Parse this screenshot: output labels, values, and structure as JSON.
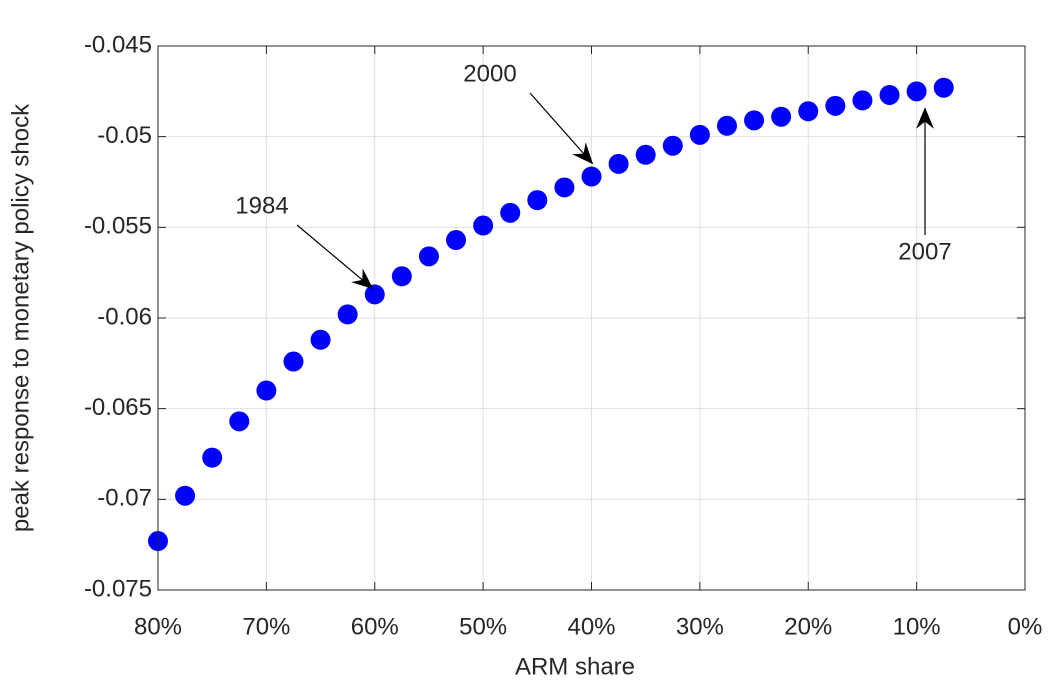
{
  "chart_data": {
    "type": "scatter",
    "xlabel": "ARM share",
    "ylabel": "peak response to monetary policy shock",
    "annotations": [
      "1984",
      "2000",
      "2007"
    ],
    "x": [
      80,
      77.5,
      75,
      72.5,
      70,
      67.5,
      65,
      62.5,
      60,
      57.5,
      55,
      52.5,
      50,
      47.5,
      45,
      42.5,
      40,
      37.5,
      35,
      32.5,
      30,
      27.5,
      25,
      22.5,
      20,
      17.5,
      15,
      12.5,
      10,
      7.5
    ],
    "series": [
      {
        "color": "#0000ff",
        "values": [
          -0.0723,
          -0.0698,
          -0.0677,
          -0.0657,
          -0.064,
          -0.0624,
          -0.0612,
          -0.0598,
          -0.0587,
          -0.0577,
          -0.0566,
          -0.0557,
          -0.0549,
          -0.0542,
          -0.0535,
          -0.0528,
          -0.0522,
          -0.0515,
          -0.051,
          -0.0505,
          -0.0499,
          -0.0494,
          -0.0491,
          -0.0489,
          -0.0486,
          -0.0483,
          -0.048,
          -0.0477,
          -0.0475,
          -0.0473
        ]
      }
    ],
    "xlim": [
      80,
      0
    ],
    "xticks": [
      {
        "value": 80,
        "label": "80%"
      },
      {
        "value": 70,
        "label": "70%"
      },
      {
        "value": 60,
        "label": "60%"
      },
      {
        "value": 50,
        "label": "50%"
      },
      {
        "value": 40,
        "label": "40%"
      },
      {
        "value": 30,
        "label": "30%"
      },
      {
        "value": 20,
        "label": "20%"
      },
      {
        "value": 10,
        "label": "10%"
      },
      {
        "value": 0,
        "label": "0%"
      }
    ],
    "ylim": [
      -0.075,
      -0.045
    ],
    "yticks": [
      -0.075,
      -0.07,
      -0.065,
      -0.06,
      -0.055,
      -0.05,
      -0.045
    ],
    "grid": true
  }
}
